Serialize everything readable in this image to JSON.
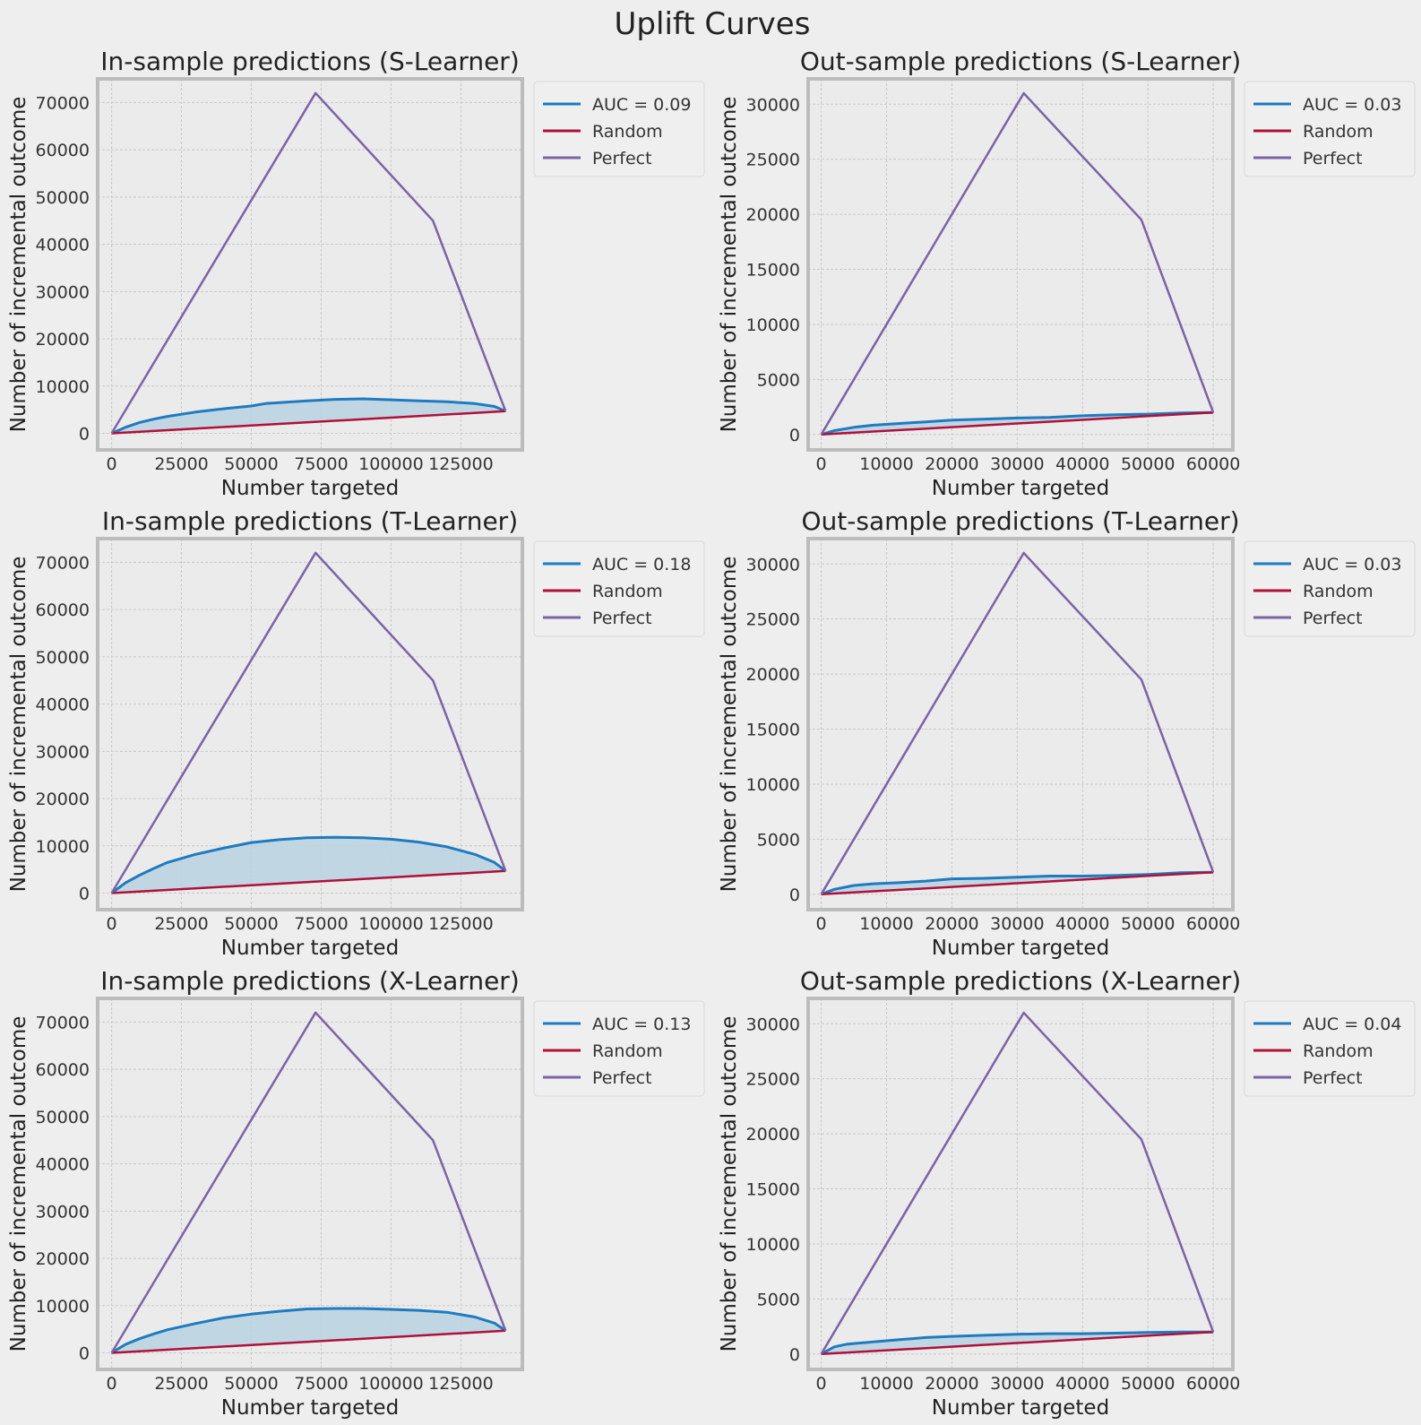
{
  "figure_title": "Uplift Curves",
  "colors": {
    "model": "#1f7bbf",
    "random": "#b0103a",
    "perfect": "#7a63a6",
    "fill": "#b8d3e2"
  },
  "chart_data": [
    {
      "type": "line",
      "title": "In-sample predictions (S-Learner)",
      "xlabel": "Number targeted",
      "ylabel": "Number of incremental outcome",
      "xlim": [
        -5000,
        147000
      ],
      "ylim": [
        -3500,
        75000
      ],
      "xticks": [
        0,
        25000,
        50000,
        75000,
        100000,
        125000
      ],
      "yticks": [
        0,
        10000,
        20000,
        30000,
        40000,
        50000,
        60000,
        70000
      ],
      "grid": true,
      "legend": "outside-right-top",
      "series": [
        {
          "name": "AUC = 0.09",
          "role": "model",
          "fill": true,
          "x": [
            0,
            5000,
            10000,
            15000,
            20000,
            30000,
            40000,
            50000,
            55000,
            60000,
            70000,
            80000,
            90000,
            100000,
            110000,
            120000,
            130000,
            137000,
            141000
          ],
          "y": [
            0,
            1300,
            2300,
            3000,
            3600,
            4500,
            5200,
            5800,
            6300,
            6500,
            6900,
            7200,
            7300,
            7100,
            6900,
            6700,
            6300,
            5700,
            4700
          ]
        },
        {
          "name": "Random",
          "role": "random",
          "x": [
            0,
            141000
          ],
          "y": [
            0,
            4700
          ]
        },
        {
          "name": "Perfect",
          "role": "perfect",
          "x": [
            0,
            73000,
            115000,
            141000
          ],
          "y": [
            0,
            72000,
            45000,
            4700
          ]
        }
      ]
    },
    {
      "type": "line",
      "title": "Out-sample predictions (S-Learner)",
      "xlabel": "Number targeted",
      "ylabel": "Number of incremental outcome",
      "xlim": [
        -2000,
        63000
      ],
      "ylim": [
        -1400,
        32300
      ],
      "xticks": [
        0,
        10000,
        20000,
        30000,
        40000,
        50000,
        60000
      ],
      "yticks": [
        0,
        5000,
        10000,
        15000,
        20000,
        25000,
        30000
      ],
      "grid": true,
      "legend": "outside-right-top",
      "series": [
        {
          "name": "AUC = 0.03",
          "role": "model",
          "fill": true,
          "x": [
            0,
            2000,
            5000,
            8000,
            12000,
            16000,
            20000,
            25000,
            30000,
            35000,
            40000,
            45000,
            50000,
            55000,
            60000
          ],
          "y": [
            0,
            350,
            650,
            850,
            1000,
            1150,
            1300,
            1400,
            1500,
            1550,
            1700,
            1800,
            1850,
            1950,
            2000
          ]
        },
        {
          "name": "Random",
          "role": "random",
          "x": [
            0,
            60000
          ],
          "y": [
            0,
            2000
          ]
        },
        {
          "name": "Perfect",
          "role": "perfect",
          "x": [
            0,
            31000,
            49000,
            60000
          ],
          "y": [
            0,
            31000,
            19500,
            2000
          ]
        }
      ]
    },
    {
      "type": "line",
      "title": "In-sample predictions (T-Learner)",
      "xlabel": "Number targeted",
      "ylabel": "Number of incremental outcome",
      "xlim": [
        -5000,
        147000
      ],
      "ylim": [
        -3500,
        75000
      ],
      "xticks": [
        0,
        25000,
        50000,
        75000,
        100000,
        125000
      ],
      "yticks": [
        0,
        10000,
        20000,
        30000,
        40000,
        50000,
        60000,
        70000
      ],
      "grid": true,
      "legend": "outside-right-top",
      "series": [
        {
          "name": "AUC = 0.18",
          "role": "model",
          "fill": true,
          "x": [
            0,
            5000,
            10000,
            15000,
            20000,
            30000,
            40000,
            50000,
            60000,
            70000,
            80000,
            90000,
            100000,
            110000,
            120000,
            130000,
            137000,
            141000
          ],
          "y": [
            0,
            2200,
            3800,
            5200,
            6500,
            8200,
            9500,
            10700,
            11300,
            11700,
            11800,
            11700,
            11400,
            10800,
            9800,
            8200,
            6500,
            4700
          ]
        },
        {
          "name": "Random",
          "role": "random",
          "x": [
            0,
            141000
          ],
          "y": [
            0,
            4700
          ]
        },
        {
          "name": "Perfect",
          "role": "perfect",
          "x": [
            0,
            73000,
            115000,
            141000
          ],
          "y": [
            0,
            72000,
            45000,
            4700
          ]
        }
      ]
    },
    {
      "type": "line",
      "title": "Out-sample predictions (T-Learner)",
      "xlabel": "Number targeted",
      "ylabel": "Number of incremental outcome",
      "xlim": [
        -2000,
        63000
      ],
      "ylim": [
        -1400,
        32300
      ],
      "xticks": [
        0,
        10000,
        20000,
        30000,
        40000,
        50000,
        60000
      ],
      "yticks": [
        0,
        5000,
        10000,
        15000,
        20000,
        25000,
        30000
      ],
      "grid": true,
      "legend": "outside-right-top",
      "series": [
        {
          "name": "AUC = 0.03",
          "role": "model",
          "fill": true,
          "x": [
            0,
            2000,
            5000,
            8000,
            12000,
            16000,
            20000,
            25000,
            30000,
            35000,
            40000,
            45000,
            50000,
            55000,
            60000
          ],
          "y": [
            0,
            450,
            800,
            950,
            1050,
            1200,
            1400,
            1450,
            1550,
            1650,
            1650,
            1700,
            1800,
            1950,
            2000
          ]
        },
        {
          "name": "Random",
          "role": "random",
          "x": [
            0,
            60000
          ],
          "y": [
            0,
            2000
          ]
        },
        {
          "name": "Perfect",
          "role": "perfect",
          "x": [
            0,
            31000,
            49000,
            60000
          ],
          "y": [
            0,
            31000,
            19500,
            2000
          ]
        }
      ]
    },
    {
      "type": "line",
      "title": "In-sample predictions (X-Learner)",
      "xlabel": "Number targeted",
      "ylabel": "Number of incremental outcome",
      "xlim": [
        -5000,
        147000
      ],
      "ylim": [
        -3500,
        75000
      ],
      "xticks": [
        0,
        25000,
        50000,
        75000,
        100000,
        125000
      ],
      "yticks": [
        0,
        10000,
        20000,
        30000,
        40000,
        50000,
        60000,
        70000
      ],
      "grid": true,
      "legend": "outside-right-top",
      "series": [
        {
          "name": "AUC = 0.13",
          "role": "model",
          "fill": true,
          "x": [
            0,
            5000,
            10000,
            15000,
            20000,
            30000,
            40000,
            50000,
            60000,
            70000,
            80000,
            90000,
            100000,
            110000,
            120000,
            130000,
            137000,
            141000
          ],
          "y": [
            0,
            1800,
            3000,
            4000,
            4900,
            6200,
            7400,
            8200,
            8800,
            9300,
            9400,
            9400,
            9200,
            9000,
            8600,
            7600,
            6300,
            4700
          ]
        },
        {
          "name": "Random",
          "role": "random",
          "x": [
            0,
            141000
          ],
          "y": [
            0,
            4700
          ]
        },
        {
          "name": "Perfect",
          "role": "perfect",
          "x": [
            0,
            73000,
            115000,
            141000
          ],
          "y": [
            0,
            72000,
            45000,
            4700
          ]
        }
      ]
    },
    {
      "type": "line",
      "title": "Out-sample predictions (X-Learner)",
      "xlabel": "Number targeted",
      "ylabel": "Number of incremental outcome",
      "xlim": [
        -2000,
        63000
      ],
      "ylim": [
        -1400,
        32300
      ],
      "xticks": [
        0,
        10000,
        20000,
        30000,
        40000,
        50000,
        60000
      ],
      "yticks": [
        0,
        5000,
        10000,
        15000,
        20000,
        25000,
        30000
      ],
      "grid": true,
      "legend": "outside-right-top",
      "series": [
        {
          "name": "AUC = 0.04",
          "role": "model",
          "fill": true,
          "x": [
            0,
            2000,
            4000,
            8000,
            12000,
            16000,
            20000,
            25000,
            30000,
            35000,
            40000,
            45000,
            50000,
            55000,
            60000
          ],
          "y": [
            0,
            650,
            900,
            1100,
            1300,
            1500,
            1600,
            1700,
            1800,
            1850,
            1850,
            1900,
            1950,
            2000,
            2000
          ]
        },
        {
          "name": "Random",
          "role": "random",
          "x": [
            0,
            60000
          ],
          "y": [
            0,
            2000
          ]
        },
        {
          "name": "Perfect",
          "role": "perfect",
          "x": [
            0,
            31000,
            49000,
            60000
          ],
          "y": [
            0,
            31000,
            19500,
            2000
          ]
        }
      ]
    }
  ]
}
